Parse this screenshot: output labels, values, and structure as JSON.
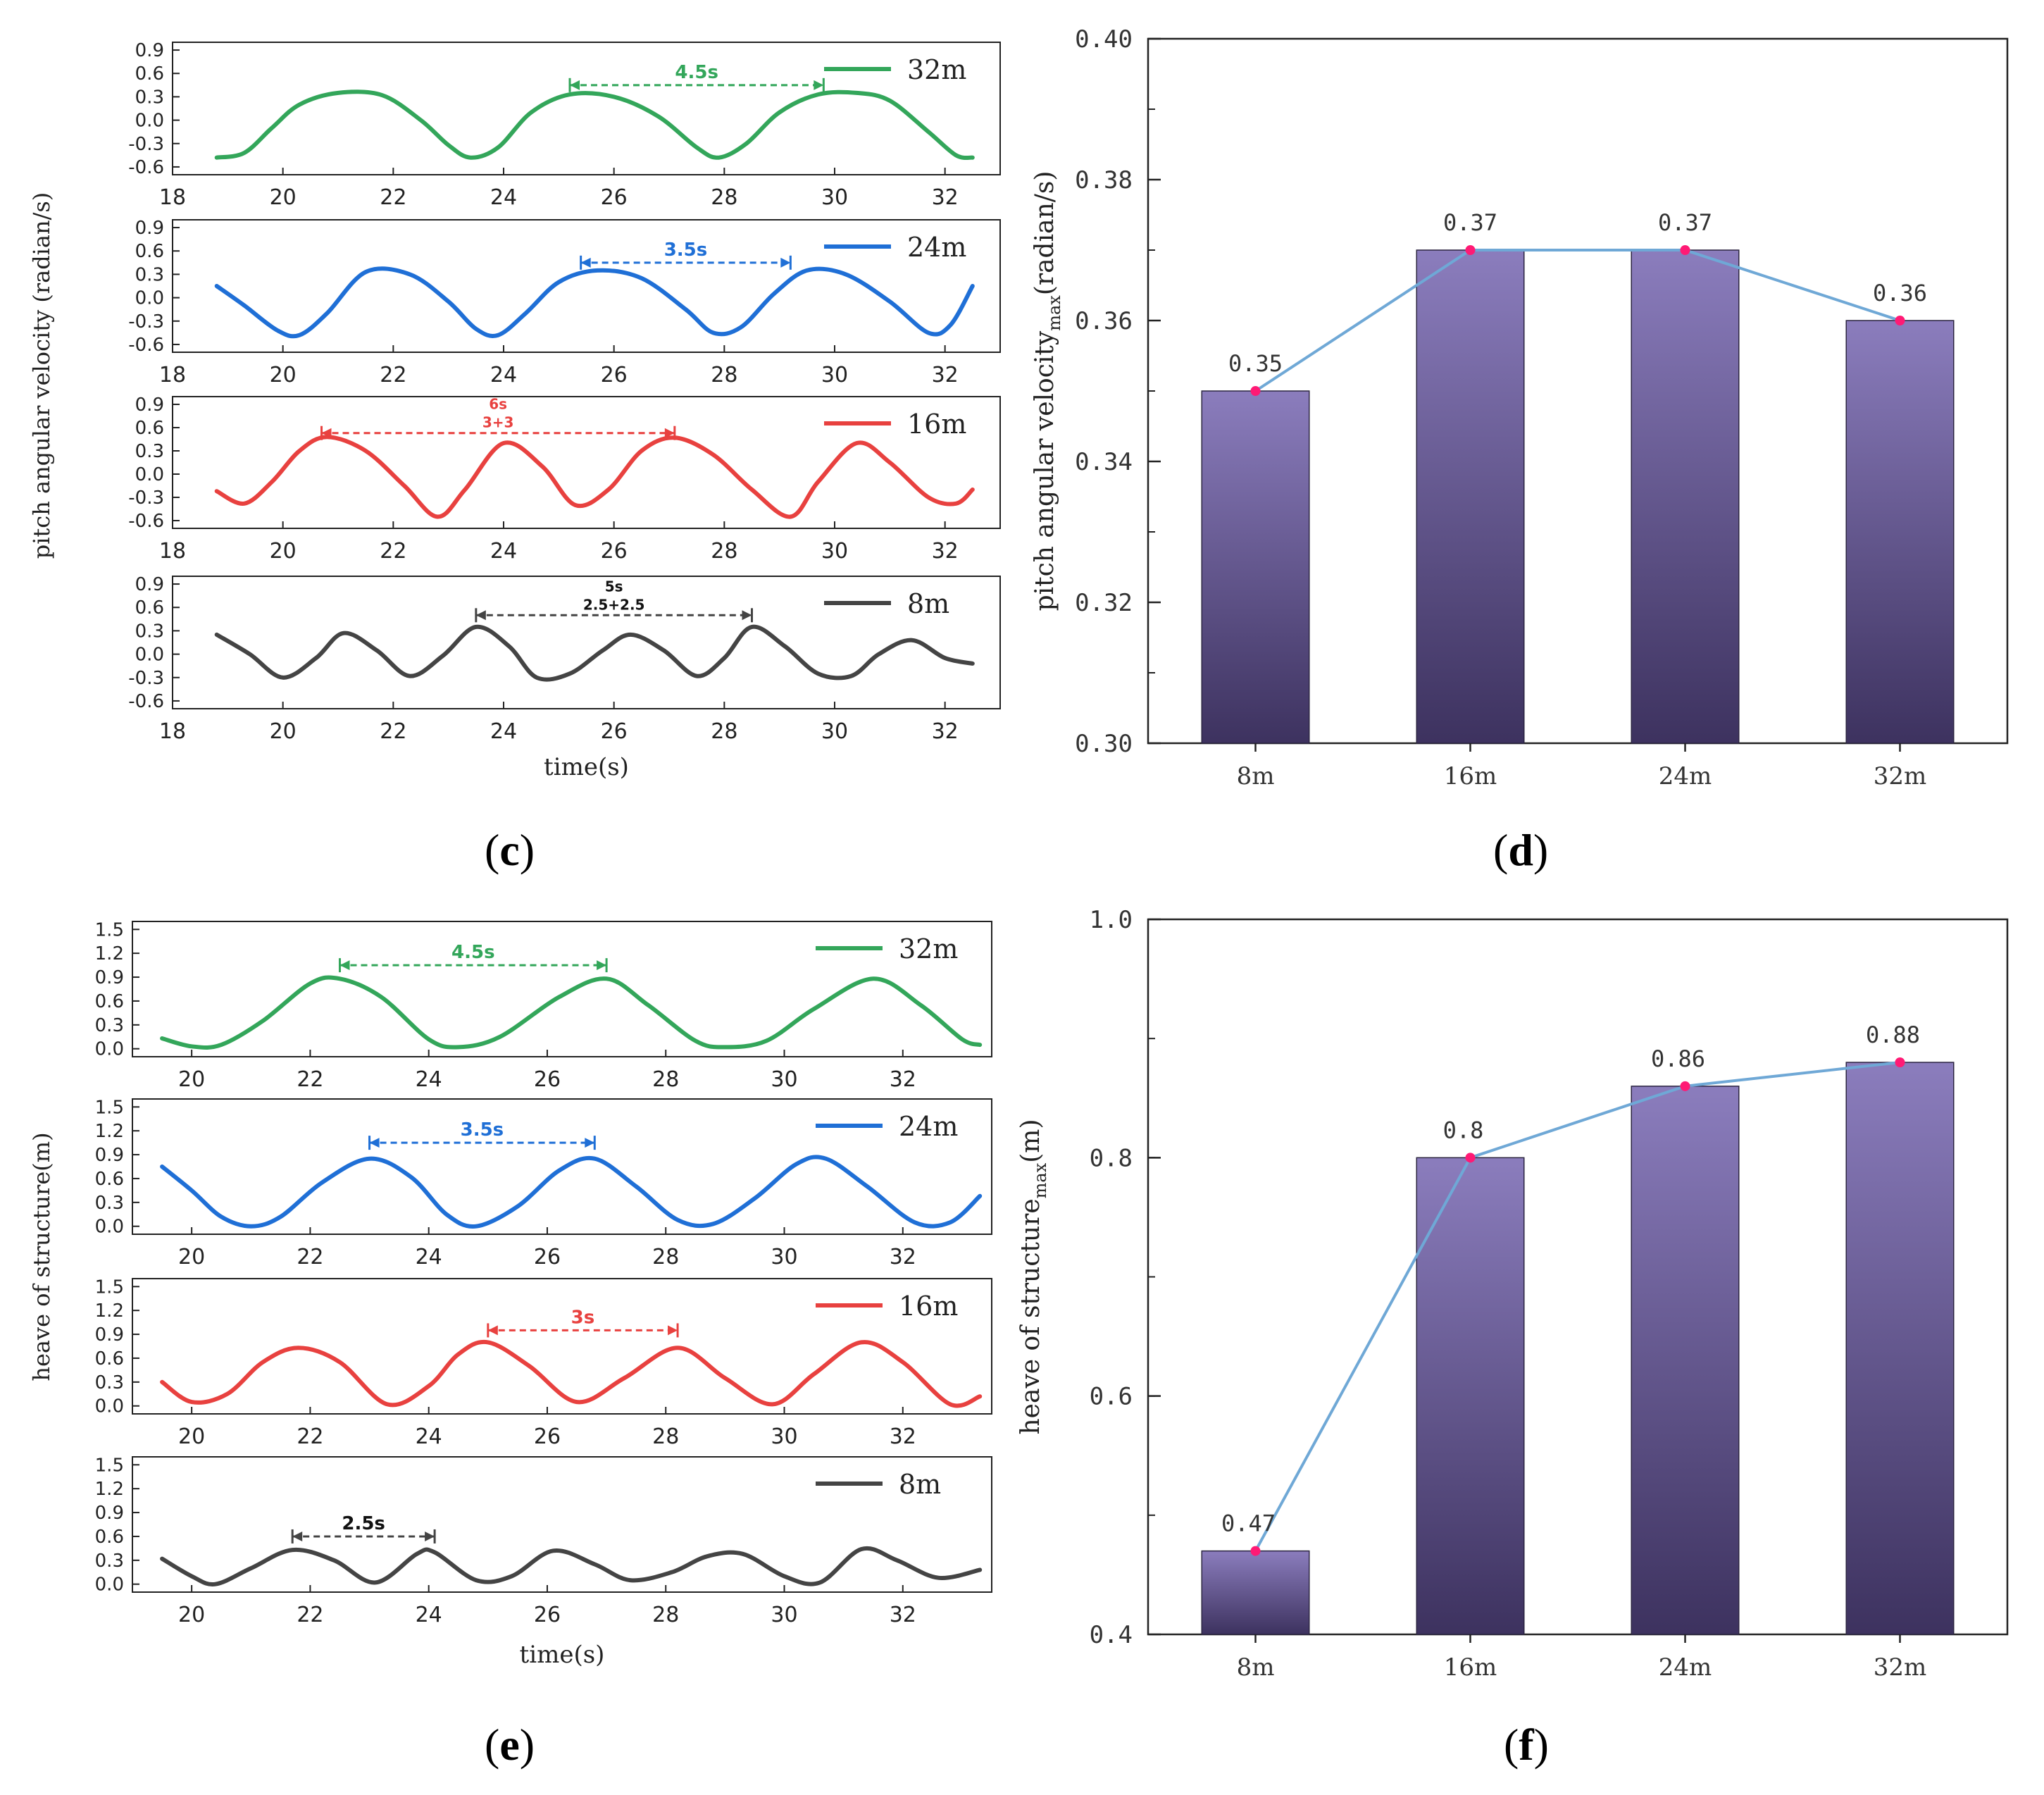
{
  "panel_labels": {
    "c": "c",
    "d": "d",
    "e": "e",
    "f": "f"
  },
  "chart_data": [
    {
      "id": "c",
      "type": "line",
      "ylabel": "pitch angular velocity (radian/s)",
      "xlabel": "time(s)",
      "xlim": [
        18,
        33
      ],
      "xticks": [
        18,
        20,
        22,
        24,
        26,
        28,
        30,
        32
      ],
      "ylim": [
        -0.7,
        1.0
      ],
      "yticks": [
        -0.6,
        -0.3,
        0.0,
        0.3,
        0.6,
        0.9
      ],
      "ytick_labels": [
        "-0.6",
        "-0.3",
        "0.0",
        "0.3",
        "0.6",
        "0.9"
      ],
      "series": [
        {
          "name": "32m",
          "color": "#33a65a",
          "x": [
            18.8,
            19.3,
            19.8,
            20.3,
            21.0,
            21.8,
            22.5,
            23.0,
            23.4,
            23.9,
            24.5,
            25.2,
            26.0,
            26.8,
            27.5,
            27.9,
            28.4,
            29.0,
            29.7,
            30.4,
            31.0,
            31.7,
            32.2,
            32.5
          ],
          "y": [
            -0.48,
            -0.42,
            -0.1,
            0.2,
            0.35,
            0.32,
            0.0,
            -0.32,
            -0.48,
            -0.35,
            0.1,
            0.33,
            0.3,
            0.05,
            -0.35,
            -0.48,
            -0.3,
            0.1,
            0.33,
            0.35,
            0.25,
            -0.15,
            -0.45,
            -0.48
          ]
        },
        {
          "name": "24m",
          "color": "#1f6fd6",
          "x": [
            18.8,
            19.3,
            19.9,
            20.3,
            20.8,
            21.5,
            22.3,
            23.0,
            23.5,
            23.9,
            24.4,
            25.0,
            25.7,
            26.5,
            27.3,
            27.8,
            28.3,
            28.9,
            29.5,
            30.2,
            31.0,
            31.7,
            32.1,
            32.5
          ],
          "y": [
            0.15,
            -0.1,
            -0.42,
            -0.48,
            -0.2,
            0.33,
            0.3,
            -0.05,
            -0.4,
            -0.48,
            -0.2,
            0.2,
            0.35,
            0.25,
            -0.15,
            -0.45,
            -0.38,
            0.05,
            0.35,
            0.3,
            -0.05,
            -0.45,
            -0.35,
            0.15
          ]
        },
        {
          "name": "16m",
          "color": "#e8413f",
          "x": [
            18.8,
            19.3,
            19.8,
            20.3,
            20.8,
            21.5,
            22.2,
            22.8,
            23.3,
            24.0,
            24.7,
            25.3,
            25.9,
            26.5,
            27.1,
            27.8,
            28.5,
            29.2,
            29.7,
            30.4,
            31.0,
            31.7,
            32.2,
            32.5
          ],
          "y": [
            -0.22,
            -0.38,
            -0.1,
            0.3,
            0.48,
            0.3,
            -0.15,
            -0.55,
            -0.2,
            0.4,
            0.1,
            -0.4,
            -0.2,
            0.3,
            0.47,
            0.25,
            -0.2,
            -0.55,
            -0.1,
            0.4,
            0.15,
            -0.3,
            -0.38,
            -0.2
          ]
        },
        {
          "name": "8m",
          "color": "#444444",
          "x": [
            18.8,
            19.4,
            20.0,
            20.6,
            21.1,
            21.7,
            22.3,
            22.9,
            23.5,
            24.1,
            24.6,
            25.2,
            25.8,
            26.3,
            26.9,
            27.5,
            28.0,
            28.5,
            29.1,
            29.7,
            30.3,
            30.8,
            31.4,
            32.0,
            32.5
          ],
          "y": [
            0.25,
            0.0,
            -0.3,
            -0.05,
            0.27,
            0.05,
            -0.28,
            -0.02,
            0.35,
            0.1,
            -0.3,
            -0.25,
            0.05,
            0.25,
            0.05,
            -0.28,
            -0.05,
            0.35,
            0.1,
            -0.25,
            -0.28,
            0.0,
            0.18,
            -0.05,
            -0.12
          ]
        }
      ],
      "annotations": [
        {
          "series": "32m",
          "x1": 25.2,
          "x2": 29.8,
          "y": 0.45,
          "label": "4.5s",
          "sublabel": ""
        },
        {
          "series": "24m",
          "x1": 25.4,
          "x2": 29.2,
          "y": 0.45,
          "label": "3.5s",
          "sublabel": ""
        },
        {
          "series": "16m",
          "x1": 20.7,
          "x2": 27.1,
          "y": 0.53,
          "label": "6s",
          "sublabel": "3+3"
        },
        {
          "series": "8m",
          "x1": 23.5,
          "x2": 28.5,
          "y": 0.5,
          "label": "5s",
          "sublabel": "2.5+2.5"
        }
      ]
    },
    {
      "id": "d",
      "type": "bar",
      "categories": [
        "8m",
        "16m",
        "24m",
        "32m"
      ],
      "values": [
        0.35,
        0.37,
        0.37,
        0.36
      ],
      "value_labels": [
        "0.35",
        "0.37",
        "0.37",
        "0.36"
      ],
      "ylabel": "pitch angular velocity",
      "ylabel_sub": "max",
      "ylabel_unit": "(radian/s)",
      "ylim": [
        0.3,
        0.4
      ],
      "yticks": [
        0.3,
        0.32,
        0.34,
        0.36,
        0.38,
        0.4
      ],
      "ytick_labels": [
        "0.30",
        "0.32",
        "0.34",
        "0.36",
        "0.38",
        "0.40"
      ],
      "bar_color_top": "#8b7dbd",
      "bar_color_bottom": "#3d325f",
      "line_color": "#6fa8d6",
      "marker_color": "#ff1a75"
    },
    {
      "id": "e",
      "type": "line",
      "ylabel": "heave of structure(m)",
      "xlabel": "time(s)",
      "xlim": [
        19,
        33.5
      ],
      "xticks": [
        20,
        22,
        24,
        26,
        28,
        30,
        32
      ],
      "ylim": [
        -0.1,
        1.6
      ],
      "yticks": [
        0.0,
        0.3,
        0.6,
        0.9,
        1.2,
        1.5
      ],
      "ytick_labels": [
        "0.0",
        "0.3",
        "0.6",
        "0.9",
        "1.2",
        "1.5"
      ],
      "series": [
        {
          "name": "32m",
          "color": "#33a65a",
          "x": [
            19.5,
            20.0,
            20.5,
            21.2,
            22.0,
            22.5,
            23.2,
            24.0,
            24.5,
            25.2,
            26.2,
            27.0,
            27.7,
            28.5,
            29.0,
            29.7,
            30.5,
            31.5,
            32.3,
            33.0,
            33.3
          ],
          "y": [
            0.13,
            0.03,
            0.05,
            0.35,
            0.82,
            0.88,
            0.65,
            0.12,
            0.02,
            0.15,
            0.65,
            0.88,
            0.55,
            0.1,
            0.02,
            0.1,
            0.5,
            0.88,
            0.55,
            0.12,
            0.05
          ]
        },
        {
          "name": "24m",
          "color": "#1f6fd6",
          "x": [
            19.5,
            20.0,
            20.5,
            21.0,
            21.5,
            22.2,
            23.0,
            23.7,
            24.3,
            24.8,
            25.5,
            26.2,
            26.8,
            27.5,
            28.2,
            28.8,
            29.5,
            30.2,
            30.7,
            31.4,
            32.2,
            32.8,
            33.3
          ],
          "y": [
            0.75,
            0.45,
            0.12,
            0.0,
            0.12,
            0.55,
            0.85,
            0.62,
            0.15,
            0.0,
            0.25,
            0.7,
            0.85,
            0.5,
            0.08,
            0.03,
            0.35,
            0.78,
            0.85,
            0.5,
            0.05,
            0.05,
            0.38
          ]
        },
        {
          "name": "16m",
          "color": "#e8413f",
          "x": [
            19.5,
            20.0,
            20.6,
            21.2,
            21.8,
            22.5,
            23.3,
            24.0,
            24.5,
            25.0,
            25.7,
            26.5,
            27.3,
            28.2,
            29.0,
            29.8,
            30.5,
            31.3,
            32.0,
            32.8,
            33.3
          ],
          "y": [
            0.3,
            0.05,
            0.15,
            0.55,
            0.73,
            0.55,
            0.02,
            0.25,
            0.65,
            0.8,
            0.5,
            0.05,
            0.35,
            0.73,
            0.35,
            0.02,
            0.4,
            0.8,
            0.55,
            0.02,
            0.12
          ]
        },
        {
          "name": "8m",
          "color": "#444444",
          "x": [
            19.5,
            20.0,
            20.4,
            21.0,
            21.7,
            22.4,
            23.1,
            23.8,
            24.1,
            24.8,
            25.4,
            26.1,
            26.8,
            27.4,
            28.1,
            28.7,
            29.3,
            30.0,
            30.6,
            31.3,
            31.9,
            32.6,
            33.3
          ],
          "y": [
            0.32,
            0.1,
            0.0,
            0.2,
            0.43,
            0.3,
            0.02,
            0.38,
            0.4,
            0.05,
            0.1,
            0.42,
            0.25,
            0.05,
            0.15,
            0.35,
            0.38,
            0.1,
            0.02,
            0.44,
            0.3,
            0.08,
            0.18
          ]
        }
      ],
      "annotations": [
        {
          "series": "32m",
          "x1": 22.5,
          "x2": 27.0,
          "y": 1.05,
          "label": "4.5s",
          "sublabel": ""
        },
        {
          "series": "24m",
          "x1": 23.0,
          "x2": 26.8,
          "y": 1.05,
          "label": "3.5s",
          "sublabel": ""
        },
        {
          "series": "16m",
          "x1": 25.0,
          "x2": 28.2,
          "y": 0.95,
          "label": "3s",
          "sublabel": ""
        },
        {
          "series": "8m",
          "x1": 21.7,
          "x2": 24.1,
          "y": 0.6,
          "label": "2.5s",
          "sublabel": ""
        }
      ]
    },
    {
      "id": "f",
      "type": "bar",
      "categories": [
        "8m",
        "16m",
        "24m",
        "32m"
      ],
      "values": [
        0.47,
        0.8,
        0.86,
        0.88
      ],
      "value_labels": [
        "0.47",
        "0.8",
        "0.86",
        "0.88"
      ],
      "ylabel": "heave of structure",
      "ylabel_sub": "max",
      "ylabel_unit": "(m)",
      "ylim": [
        0.4,
        1.0
      ],
      "yticks": [
        0.4,
        0.6,
        0.8,
        1.0
      ],
      "ytick_labels": [
        "0.4",
        "0.6",
        "0.8",
        "1.0"
      ],
      "bar_color_top": "#8b7dbd",
      "bar_color_bottom": "#3d325f",
      "line_color": "#6fa8d6",
      "marker_color": "#ff1a75"
    }
  ]
}
